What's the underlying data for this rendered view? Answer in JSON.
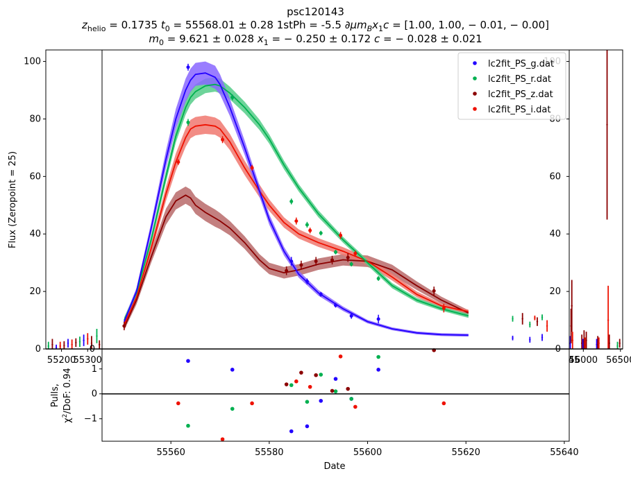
{
  "title": {
    "name": "psc120143",
    "line2": {
      "z_sym": "z",
      "z_sub": "helio",
      "z_val": "= 0.1735",
      "t0_sym": "t",
      "t0_sub": "0",
      "t0_val": "= 55568.01 ± 0.28",
      "phase_text": "1stPh = -5.5",
      "deriv_text": "∂μm",
      "deriv_sub": "B",
      "deriv_tail": "x",
      "deriv_tail_sub": "1",
      "deriv_c": "c",
      "deriv_val": "= [1.00,  1.00,  − 0.01,  − 0.00]"
    },
    "line3": {
      "m0_sym": "m",
      "m0_sub": "0",
      "m0_val": "= 9.621 ± 0.028",
      "x1_sym": "x",
      "x1_sub": "1",
      "x1_val": "= − 0.250 ± 0.172",
      "c_sym": "c",
      "c_val": "= − 0.028 ± 0.021"
    }
  },
  "colors": {
    "g": "#2200ff",
    "r": "#00b050",
    "z": "#8b0000",
    "i": "#ee1100",
    "g_band": "#8866ff",
    "r_band": "#55cc88",
    "z_band": "#b86a6a",
    "i_band": "#f07870"
  },
  "chart_data": [
    {
      "type": "line",
      "panel": "main",
      "ylabel": "Flux (Zeropoint = 25)",
      "xlim": [
        55546,
        55641
      ],
      "ylim": [
        0,
        104
      ],
      "yticks": [
        "0",
        "20",
        "40",
        "60",
        "80",
        "100"
      ],
      "legend": {
        "placement": "top-right",
        "entries": [
          "lc2fit_PS_g.dat",
          "lc2fit_PS_r.dat",
          "lc2fit_PS_z.dat",
          "lc2fit_PS_i.dat"
        ]
      },
      "model_x": [
        55550.5,
        55553,
        55556,
        55559,
        55561,
        55563,
        55564,
        55565,
        55567,
        55569,
        55570,
        55572,
        55575,
        55578,
        55580,
        55583,
        55586,
        55590,
        55595,
        55600,
        55605,
        55610,
        55615,
        55620.5
      ],
      "series": [
        {
          "name": "lc2fit_PS_g.dat",
          "band": "g",
          "model_y": [
            9.5,
            20,
            42,
            66,
            80,
            90,
            93.5,
            95.5,
            96,
            94.5,
            92,
            84,
            70,
            55,
            45,
            34,
            26,
            19.5,
            14,
            9.5,
            7,
            5.6,
            5,
            4.8
          ],
          "band_halfwidth": [
            1,
            1.2,
            2,
            3,
            3.5,
            4,
            4,
            4,
            4,
            4,
            3.5,
            3,
            2.5,
            2,
            1.8,
            1.5,
            1.2,
            1,
            0.8,
            0.6,
            0.5,
            0.5,
            0.5,
            0.5
          ],
          "points": [
            [
              55563.5,
              98,
              1.2
            ],
            [
              55572.5,
              87.5,
              1.0
            ],
            [
              55584.5,
              30.5,
              1.5
            ],
            [
              55587.7,
              23.5,
              1.0
            ],
            [
              55590.5,
              19,
              0.8
            ],
            [
              55593.5,
              15.2,
              0.8
            ],
            [
              55596.7,
              11.5,
              1.0
            ],
            [
              55602.2,
              10.4,
              1.5
            ]
          ]
        },
        {
          "name": "lc2fit_PS_r.dat",
          "band": "r",
          "model_y": [
            10,
            19.5,
            38,
            60,
            74,
            84,
            87.5,
            89.5,
            91.5,
            92,
            91.5,
            89,
            84,
            78,
            73,
            64,
            56,
            47,
            38,
            30,
            22,
            17,
            14,
            11.5
          ],
          "band_halfwidth": [
            1,
            1.2,
            1.5,
            2,
            2.2,
            2.5,
            2.5,
            2.5,
            2.5,
            2.5,
            2.5,
            2.2,
            2,
            1.8,
            1.6,
            1.5,
            1.3,
            1.2,
            1,
            1,
            0.9,
            0.8,
            0.7,
            0.7
          ],
          "points": [
            [
              55563.5,
              78.8,
              1.2
            ],
            [
              55572.5,
              87.5,
              1.0
            ],
            [
              55584.5,
              51.3,
              1.0
            ],
            [
              55587.7,
              43.2,
              1.0
            ],
            [
              55590.5,
              40.3,
              0.8
            ],
            [
              55593.5,
              33.7,
              0.8
            ],
            [
              55596.7,
              29.5,
              0.8
            ],
            [
              55602.2,
              24.5,
              0.8
            ]
          ]
        },
        {
          "name": "lc2fit_PS_z.dat",
          "band": "z",
          "model_y": [
            7.5,
            17,
            32,
            46,
            51.5,
            53.5,
            52.5,
            50,
            47.5,
            45.5,
            44.5,
            42,
            37,
            31,
            28,
            26.5,
            27.5,
            29.5,
            31,
            30.5,
            27.5,
            22,
            17,
            12.5
          ],
          "band_halfwidth": [
            1,
            1.5,
            2,
            2.8,
            3,
            3,
            3,
            3,
            3,
            3,
            2.8,
            2.5,
            2.2,
            2,
            2,
            2,
            2,
            2,
            2,
            2,
            1.8,
            1.5,
            1.2,
            1
          ],
          "points": [
            [
              55550.5,
              8,
              1.5
            ],
            [
              55583.5,
              27.2,
              1.5
            ],
            [
              55586.5,
              29.2,
              1.5
            ],
            [
              55589.5,
              30.5,
              1.5
            ],
            [
              55592.8,
              30.9,
              1.5
            ],
            [
              55596.0,
              31.8,
              1.5
            ],
            [
              55613.5,
              20.2,
              1.5
            ]
          ]
        },
        {
          "name": "lc2fit_PS_i.dat",
          "band": "i",
          "model_y": [
            8.5,
            18,
            35,
            54,
            65,
            73.5,
            76.5,
            77.5,
            78,
            77.5,
            76.5,
            72,
            63,
            55,
            50,
            44,
            40,
            37,
            34,
            30.5,
            25,
            19,
            15,
            13
          ],
          "band_halfwidth": [
            1,
            1.2,
            1.8,
            2.5,
            3,
            3.2,
            3.2,
            3.2,
            3.2,
            3,
            3,
            2.8,
            2.5,
            2.2,
            2,
            1.8,
            1.6,
            1.5,
            1.4,
            1.3,
            1.2,
            1,
            0.8,
            0.7
          ],
          "points": [
            [
              55561.5,
              65,
              1.0
            ],
            [
              55570.5,
              72.8,
              1.2
            ],
            [
              55576.5,
              63,
              1.0
            ],
            [
              55585.5,
              44.5,
              1.2
            ],
            [
              55588.3,
              41.2,
              1.0
            ],
            [
              55594.5,
              39.5,
              1.2
            ],
            [
              55597.5,
              33.2,
              1.0
            ],
            [
              55615.5,
              14.2,
              1.5
            ]
          ]
        }
      ]
    },
    {
      "type": "scatter",
      "panel": "pulls",
      "xlabel": "Date",
      "ylabel_line1": "Pulls,",
      "ylabel_line2_prefix": "χ",
      "ylabel_line2_sup": "2",
      "ylabel_line2_suffix": "/DoF: 0.94",
      "xlim": [
        55546,
        55641
      ],
      "ylim": [
        -1.9,
        1.8
      ],
      "xticks": [
        "55560",
        "55580",
        "55600",
        "55620",
        "55640"
      ],
      "yticks": [
        "−1",
        "0",
        "1"
      ],
      "series": [
        {
          "band": "g",
          "points": [
            [
              55563.5,
              1.32
            ],
            [
              55572.5,
              0.97
            ],
            [
              55584.5,
              -1.5
            ],
            [
              55587.7,
              -1.3
            ],
            [
              55590.5,
              -0.28
            ],
            [
              55593.5,
              0.6
            ],
            [
              55596.7,
              -0.2
            ],
            [
              55602.2,
              0.97
            ]
          ]
        },
        {
          "band": "r",
          "points": [
            [
              55563.5,
              -1.28
            ],
            [
              55572.5,
              -0.6
            ],
            [
              55584.5,
              0.35
            ],
            [
              55587.7,
              -0.32
            ],
            [
              55590.5,
              0.77
            ],
            [
              55593.5,
              0.1
            ],
            [
              55596.7,
              -0.2
            ],
            [
              55602.2,
              1.48
            ]
          ]
        },
        {
          "band": "z",
          "points": [
            [
              55583.5,
              0.38
            ],
            [
              55586.5,
              0.85
            ],
            [
              55589.5,
              0.75
            ],
            [
              55592.8,
              0.12
            ],
            [
              55596.0,
              0.2
            ],
            [
              55613.5,
              1.75
            ]
          ]
        },
        {
          "band": "i",
          "points": [
            [
              55561.5,
              -0.38
            ],
            [
              55570.5,
              -1.82
            ],
            [
              55576.5,
              -0.38
            ],
            [
              55585.5,
              0.5
            ],
            [
              55588.3,
              0.28
            ],
            [
              55594.5,
              1.5
            ],
            [
              55597.5,
              -0.52
            ],
            [
              55615.5,
              -0.38
            ]
          ]
        }
      ]
    },
    {
      "type": "scatter",
      "panel": "left-inset",
      "xticks": [
        "55200",
        "55300"
      ],
      "ytick_zero": "0",
      "note": "early-time points with error bars",
      "points": [
        {
          "band": "r",
          "x": 55150,
          "y": 1.0,
          "err": 1.5
        },
        {
          "band": "z",
          "x": 55165,
          "y": 1.5,
          "err": 2.0
        },
        {
          "band": "g",
          "x": 55180,
          "y": 0.5,
          "err": 1.0
        },
        {
          "band": "i",
          "x": 55195,
          "y": 1.0,
          "err": 1.5
        },
        {
          "band": "z",
          "x": 55210,
          "y": 1.2,
          "err": 1.5
        },
        {
          "band": "g",
          "x": 55225,
          "y": 2.0,
          "err": 1.5
        },
        {
          "band": "i",
          "x": 55240,
          "y": 1.5,
          "err": 1.8
        },
        {
          "band": "z",
          "x": 55255,
          "y": 2.2,
          "err": 1.5
        },
        {
          "band": "r",
          "x": 55270,
          "y": 2.5,
          "err": 1.8
        },
        {
          "band": "g",
          "x": 55285,
          "y": 3.0,
          "err": 2.0
        },
        {
          "band": "i",
          "x": 55300,
          "y": 3.5,
          "err": 2.0
        },
        {
          "band": "z",
          "x": 55315,
          "y": 2.0,
          "err": 2.5
        },
        {
          "band": "r",
          "x": 55335,
          "y": 4.5,
          "err": 2.5
        },
        {
          "band": "z",
          "x": 55345,
          "y": 1.5,
          "err": 1.5
        }
      ]
    },
    {
      "type": "scatter",
      "panel": "right-inset",
      "xticks": [
        "56000",
        "56500"
      ],
      "xticks_partial": [
        "45"
      ],
      "yticks": [
        "0",
        "20",
        "40",
        "60",
        "80",
        "100"
      ],
      "ylim": [
        0,
        104
      ],
      "note": "late-time points with error bars",
      "points": [
        {
          "band": "g",
          "x": 55825,
          "y": 2.0,
          "err": 2.5
        },
        {
          "band": "z",
          "x": 55835,
          "y": 8.0,
          "err": 6.0
        },
        {
          "band": "z",
          "x": 55845,
          "y": 15.0,
          "err": 9.0
        },
        {
          "band": "i",
          "x": 55855,
          "y": 3.0,
          "err": 3.0
        },
        {
          "band": "z",
          "x": 55980,
          "y": 2.0,
          "err": 3.0
        },
        {
          "band": "g",
          "x": 55995,
          "y": 1.5,
          "err": 2.0
        },
        {
          "band": "z",
          "x": 56010,
          "y": 2.5,
          "err": 4.0
        },
        {
          "band": "i",
          "x": 56025,
          "y": 1.5,
          "err": 2.5
        },
        {
          "band": "z",
          "x": 56040,
          "y": 3.0,
          "err": 3.0
        },
        {
          "band": "g",
          "x": 56180,
          "y": 1.5,
          "err": 2.0
        },
        {
          "band": "z",
          "x": 56195,
          "y": 1.5,
          "err": 3.0
        },
        {
          "band": "i",
          "x": 56210,
          "y": 2.0,
          "err": 2.0
        },
        {
          "band": "z",
          "x": 56320,
          "y": 78.0,
          "err": 33.0
        },
        {
          "band": "i",
          "x": 56335,
          "y": 10.0,
          "err": 12.0
        },
        {
          "band": "z",
          "x": 56350,
          "y": 2.0,
          "err": 3.0
        },
        {
          "band": "r",
          "x": 56460,
          "y": 1.0,
          "err": 1.5
        },
        {
          "band": "z",
          "x": 56490,
          "y": 2.0,
          "err": 1.5
        }
      ]
    },
    {
      "type": "scatter",
      "panel": "late-points-main",
      "points": [
        {
          "band": "g",
          "x": 55629.5,
          "y": 3.8,
          "err": 0.8
        },
        {
          "band": "r",
          "x": 55629.5,
          "y": 10.5,
          "err": 1.0
        },
        {
          "band": "z",
          "x": 55631.5,
          "y": 10.5,
          "err": 2.0
        },
        {
          "band": "r",
          "x": 55633.0,
          "y": 8.5,
          "err": 1.0
        },
        {
          "band": "g",
          "x": 55633.0,
          "y": 3.2,
          "err": 1.0
        },
        {
          "band": "i",
          "x": 55634.0,
          "y": 10.8,
          "err": 0.8
        },
        {
          "band": "z",
          "x": 55634.5,
          "y": 9.5,
          "err": 1.5
        },
        {
          "band": "r",
          "x": 55635.5,
          "y": 11.0,
          "err": 1.0
        },
        {
          "band": "g",
          "x": 55635.5,
          "y": 4.0,
          "err": 1.2
        },
        {
          "band": "i",
          "x": 55636.5,
          "y": 8.0,
          "err": 2.0
        }
      ]
    }
  ]
}
